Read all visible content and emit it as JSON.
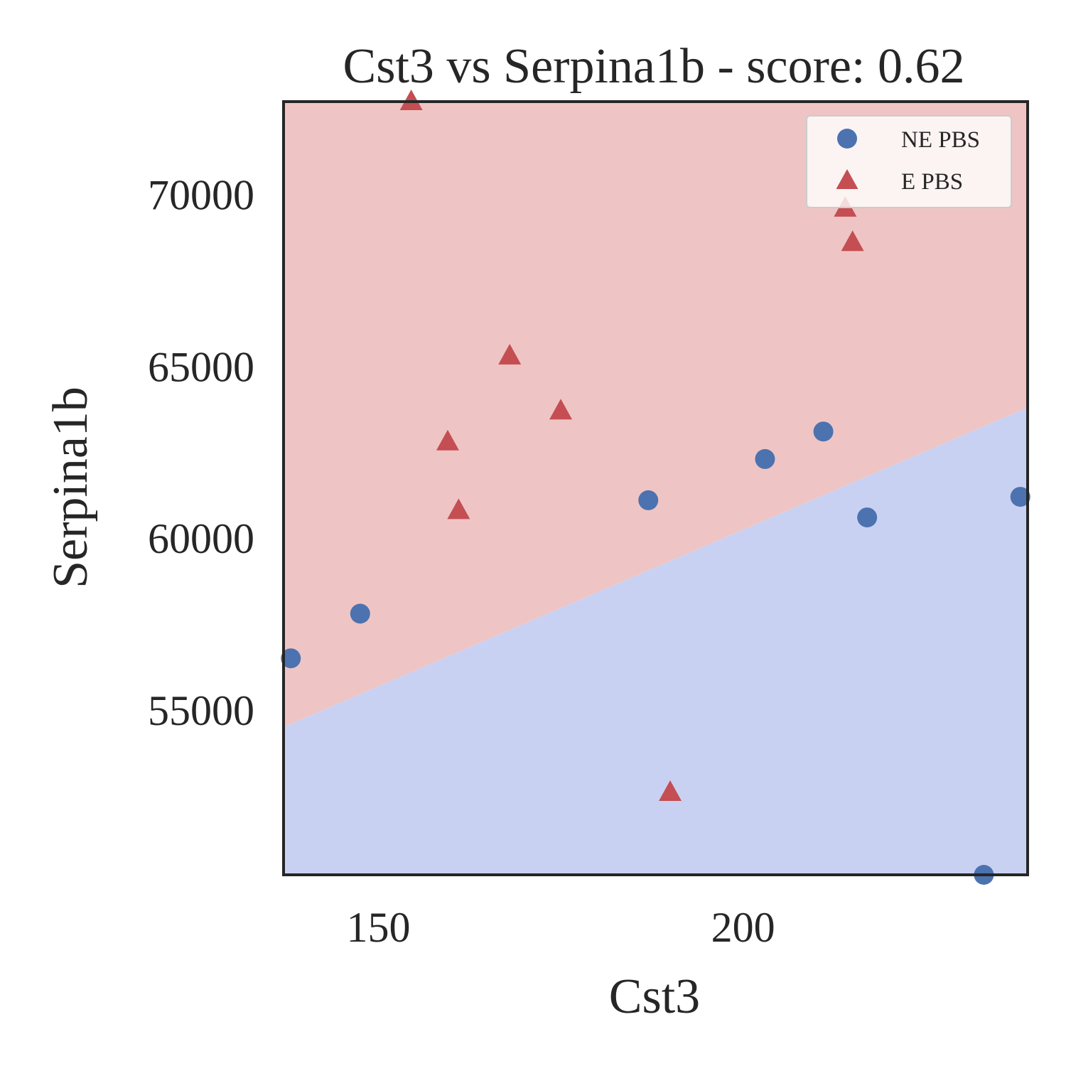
{
  "chart_data": {
    "type": "scatter",
    "title": "Cst3 vs Serpina1b - score: 0.62",
    "xlabel": "Cst3",
    "ylabel": "Serpina1b",
    "xlim": [
      137,
      239
    ],
    "ylim": [
      50200,
      72700
    ],
    "xticks": [
      150,
      200
    ],
    "yticks": [
      55000,
      60000,
      65000,
      70000
    ],
    "grid": false,
    "legend_position": "top-right",
    "decision_boundary": {
      "x": [
        137,
        239
      ],
      "y": [
        54500,
        63800
      ],
      "above_label": "E PBS",
      "below_label": "NE PBS"
    },
    "colors": {
      "ne": "#4c72b0",
      "e": "#c44e52",
      "region_above": "#eec5c4",
      "region_below": "#c9d1f2",
      "frame": "#262626"
    },
    "series": [
      {
        "name": "NE PBS",
        "marker": "circle",
        "points": [
          [
            138,
            56500
          ],
          [
            147.5,
            57800
          ],
          [
            187,
            61100
          ],
          [
            203,
            62300
          ],
          [
            211,
            63100
          ],
          [
            217,
            60600
          ],
          [
            233,
            50200
          ],
          [
            238,
            61200
          ]
        ]
      },
      {
        "name": "E PBS",
        "marker": "triangle",
        "points": [
          [
            154.5,
            72700
          ],
          [
            159.5,
            62800
          ],
          [
            161,
            60800
          ],
          [
            168,
            65300
          ],
          [
            175,
            63700
          ],
          [
            190,
            52600
          ],
          [
            214,
            69600
          ],
          [
            215,
            68600
          ]
        ]
      }
    ]
  }
}
